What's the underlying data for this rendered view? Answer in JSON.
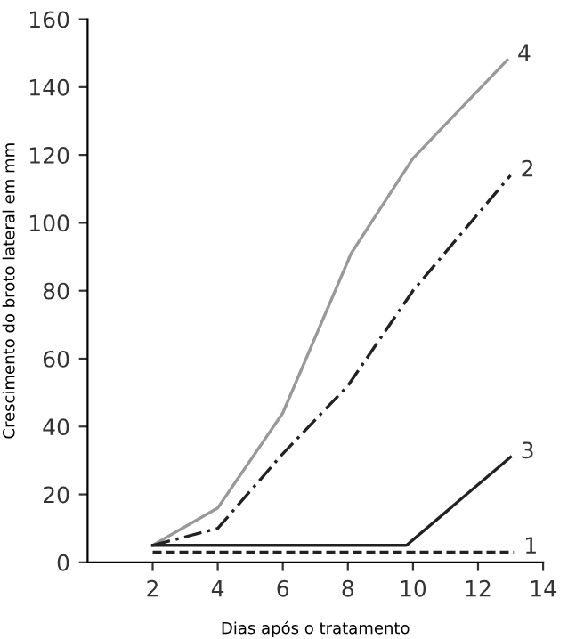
{
  "chart_data": {
    "type": "line",
    "xlabel": "Dias após o tratamento",
    "ylabel": "Crescimento do broto lateral em mm",
    "xlim": [
      0,
      14
    ],
    "xticks": [
      2,
      4,
      6,
      8,
      10,
      12,
      14
    ],
    "ylim": [
      0,
      160
    ],
    "yticks": [
      0,
      20,
      40,
      60,
      80,
      100,
      120,
      140,
      160
    ],
    "grid": false,
    "legend": false,
    "marker": "none",
    "series": [
      {
        "name": "4",
        "color": "#999999",
        "line_style": "solid",
        "x": [
          2,
          4,
          6,
          8.1,
          10,
          12.9
        ],
        "values": [
          5,
          16,
          44,
          91,
          119,
          148
        ]
      },
      {
        "name": "2",
        "color": "#222222",
        "line_style": "dashdot",
        "x": [
          2,
          4,
          6,
          8,
          10,
          13
        ],
        "values": [
          5,
          10,
          32,
          52,
          80,
          114
        ]
      },
      {
        "name": "3",
        "color": "#222222",
        "line_style": "solid",
        "x": [
          2,
          9.8,
          13
        ],
        "values": [
          5,
          5,
          31
        ]
      },
      {
        "name": "1",
        "color": "#222222",
        "line_style": "dashed",
        "x": [
          2,
          13.1
        ],
        "values": [
          3,
          3
        ]
      }
    ]
  }
}
